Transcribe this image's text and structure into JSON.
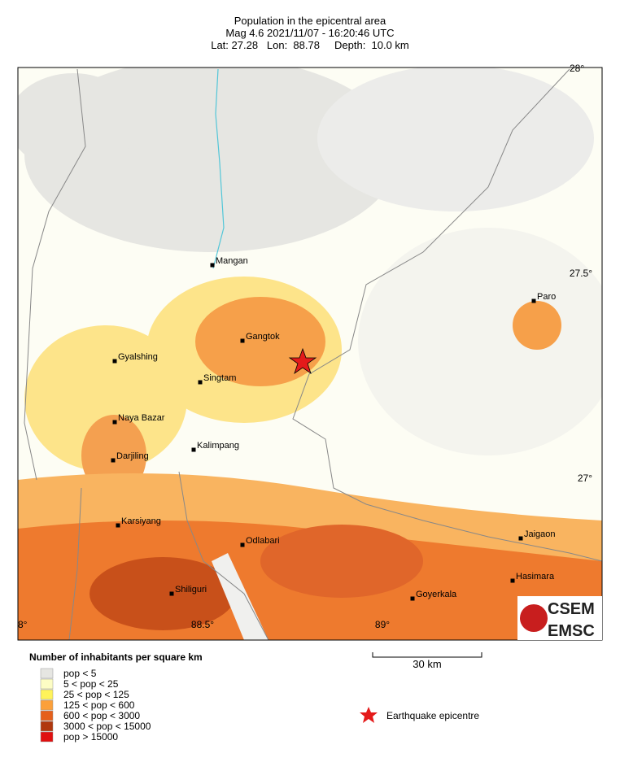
{
  "header": {
    "title": "Population in the epicentral area",
    "line2": "Mag 4.6  2021/11/07 - 16:20:46 UTC",
    "line3": "Lat: 27.28   Lon:  88.78     Depth:  10.0 km"
  },
  "map": {
    "coordinate_labels": [
      "28°",
      "27.5°",
      "27°",
      "8°",
      "88.5°",
      "89°"
    ],
    "places": [
      "Mangan",
      "Gangtok",
      "Gyalshing",
      "Singtam",
      "Naya Bazar",
      "Kalimpang",
      "Darjiling",
      "Karsiyang",
      "Odlabari",
      "Shiliguri",
      "Goyerkala",
      "Jaigaon",
      "Hasimara",
      "Paro"
    ]
  },
  "legend": {
    "title": "Number of inhabitants per square km",
    "items": [
      {
        "label": "pop < 5",
        "color": "#e6e6e2"
      },
      {
        "label": "5 < pop < 25",
        "color": "#fdfdc4"
      },
      {
        "label": "25 < pop < 125",
        "color": "#fff35a"
      },
      {
        "label": "125 < pop < 600",
        "color": "#fca03a"
      },
      {
        "label": "600 < pop < 3000",
        "color": "#e5601c"
      },
      {
        "label": "3000 < pop < 15000",
        "color": "#b0380e"
      },
      {
        "label": "pop > 15000",
        "color": "#e01010"
      }
    ]
  },
  "scale_bar": {
    "label": "30 km"
  },
  "epicentre": {
    "label": "Earthquake epicentre"
  },
  "logo": {
    "top": "CSEM",
    "bottom": "EMSC"
  }
}
